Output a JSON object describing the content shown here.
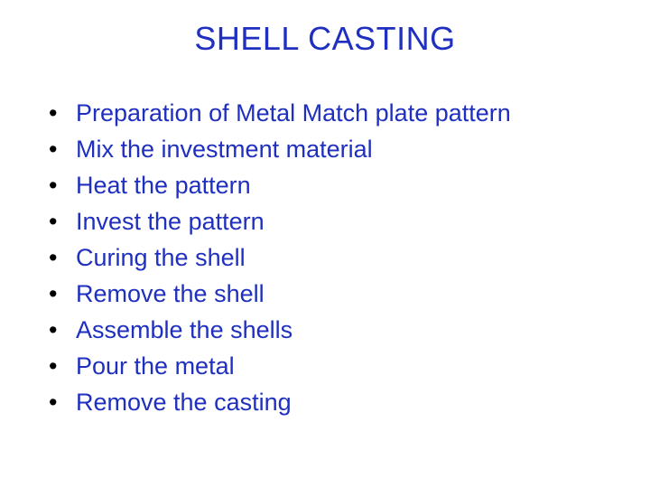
{
  "slide": {
    "title": "SHELL CASTING",
    "title_color": "#1f2fbf",
    "text_color": "#1f2fbf",
    "bullet_color": "#000000",
    "background_color": "#ffffff",
    "title_fontsize": 36,
    "body_fontsize": 27,
    "items": [
      "Preparation of Metal Match plate pattern",
      "Mix the investment material",
      "Heat the pattern",
      "Invest the pattern",
      "Curing the shell",
      "Remove the shell",
      "Assemble the shells",
      "Pour the metal",
      "Remove the casting"
    ]
  }
}
